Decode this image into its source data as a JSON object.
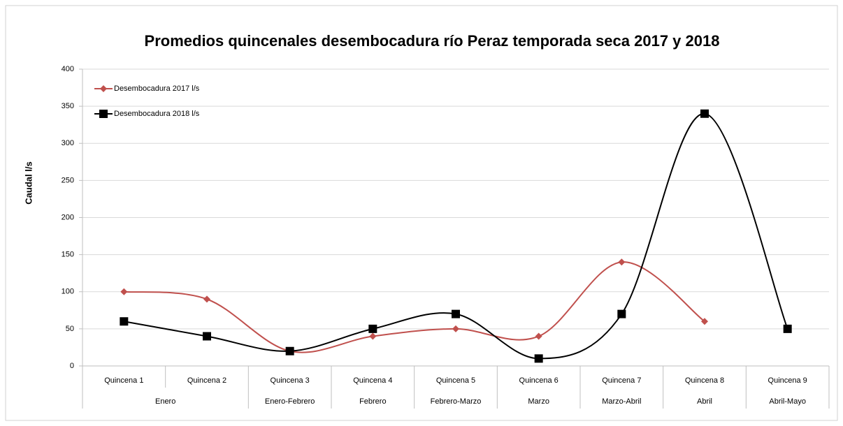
{
  "chart_data": {
    "type": "line",
    "title": "Promedios quincenales desembocadura río Peraz temporada seca 2017 y 2018",
    "y_label": "Caudal l/s",
    "categories": [
      "Quincena 1",
      "Quincena 2",
      "Quincena 3",
      "Quincena 4",
      "Quincena 5",
      "Quincena 6",
      "Quincena 7",
      "Quincena 8",
      "Quincena 9"
    ],
    "groups": [
      "Enero",
      null,
      "Enero-Febrero",
      "Febrero",
      "Febrero-Marzo",
      "Marzo",
      "Marzo-Abril",
      "Abril",
      "Abril-Mayo"
    ],
    "series": [
      {
        "name": "Desembocadura 2017 l/s",
        "color": "#c0504d",
        "marker": "diamond",
        "values": [
          100,
          90,
          20,
          40,
          50,
          40,
          140,
          60,
          null
        ]
      },
      {
        "name": "Desembocadura 2018 l/s",
        "color": "#000000",
        "marker": "square",
        "values": [
          60,
          40,
          20,
          50,
          70,
          10,
          70,
          340,
          50
        ]
      }
    ],
    "ylim": [
      0,
      400
    ],
    "yticks": [
      0,
      50,
      100,
      150,
      200,
      250,
      300,
      350,
      400
    ],
    "grid": true,
    "smooth": true,
    "legend": "top-left"
  }
}
